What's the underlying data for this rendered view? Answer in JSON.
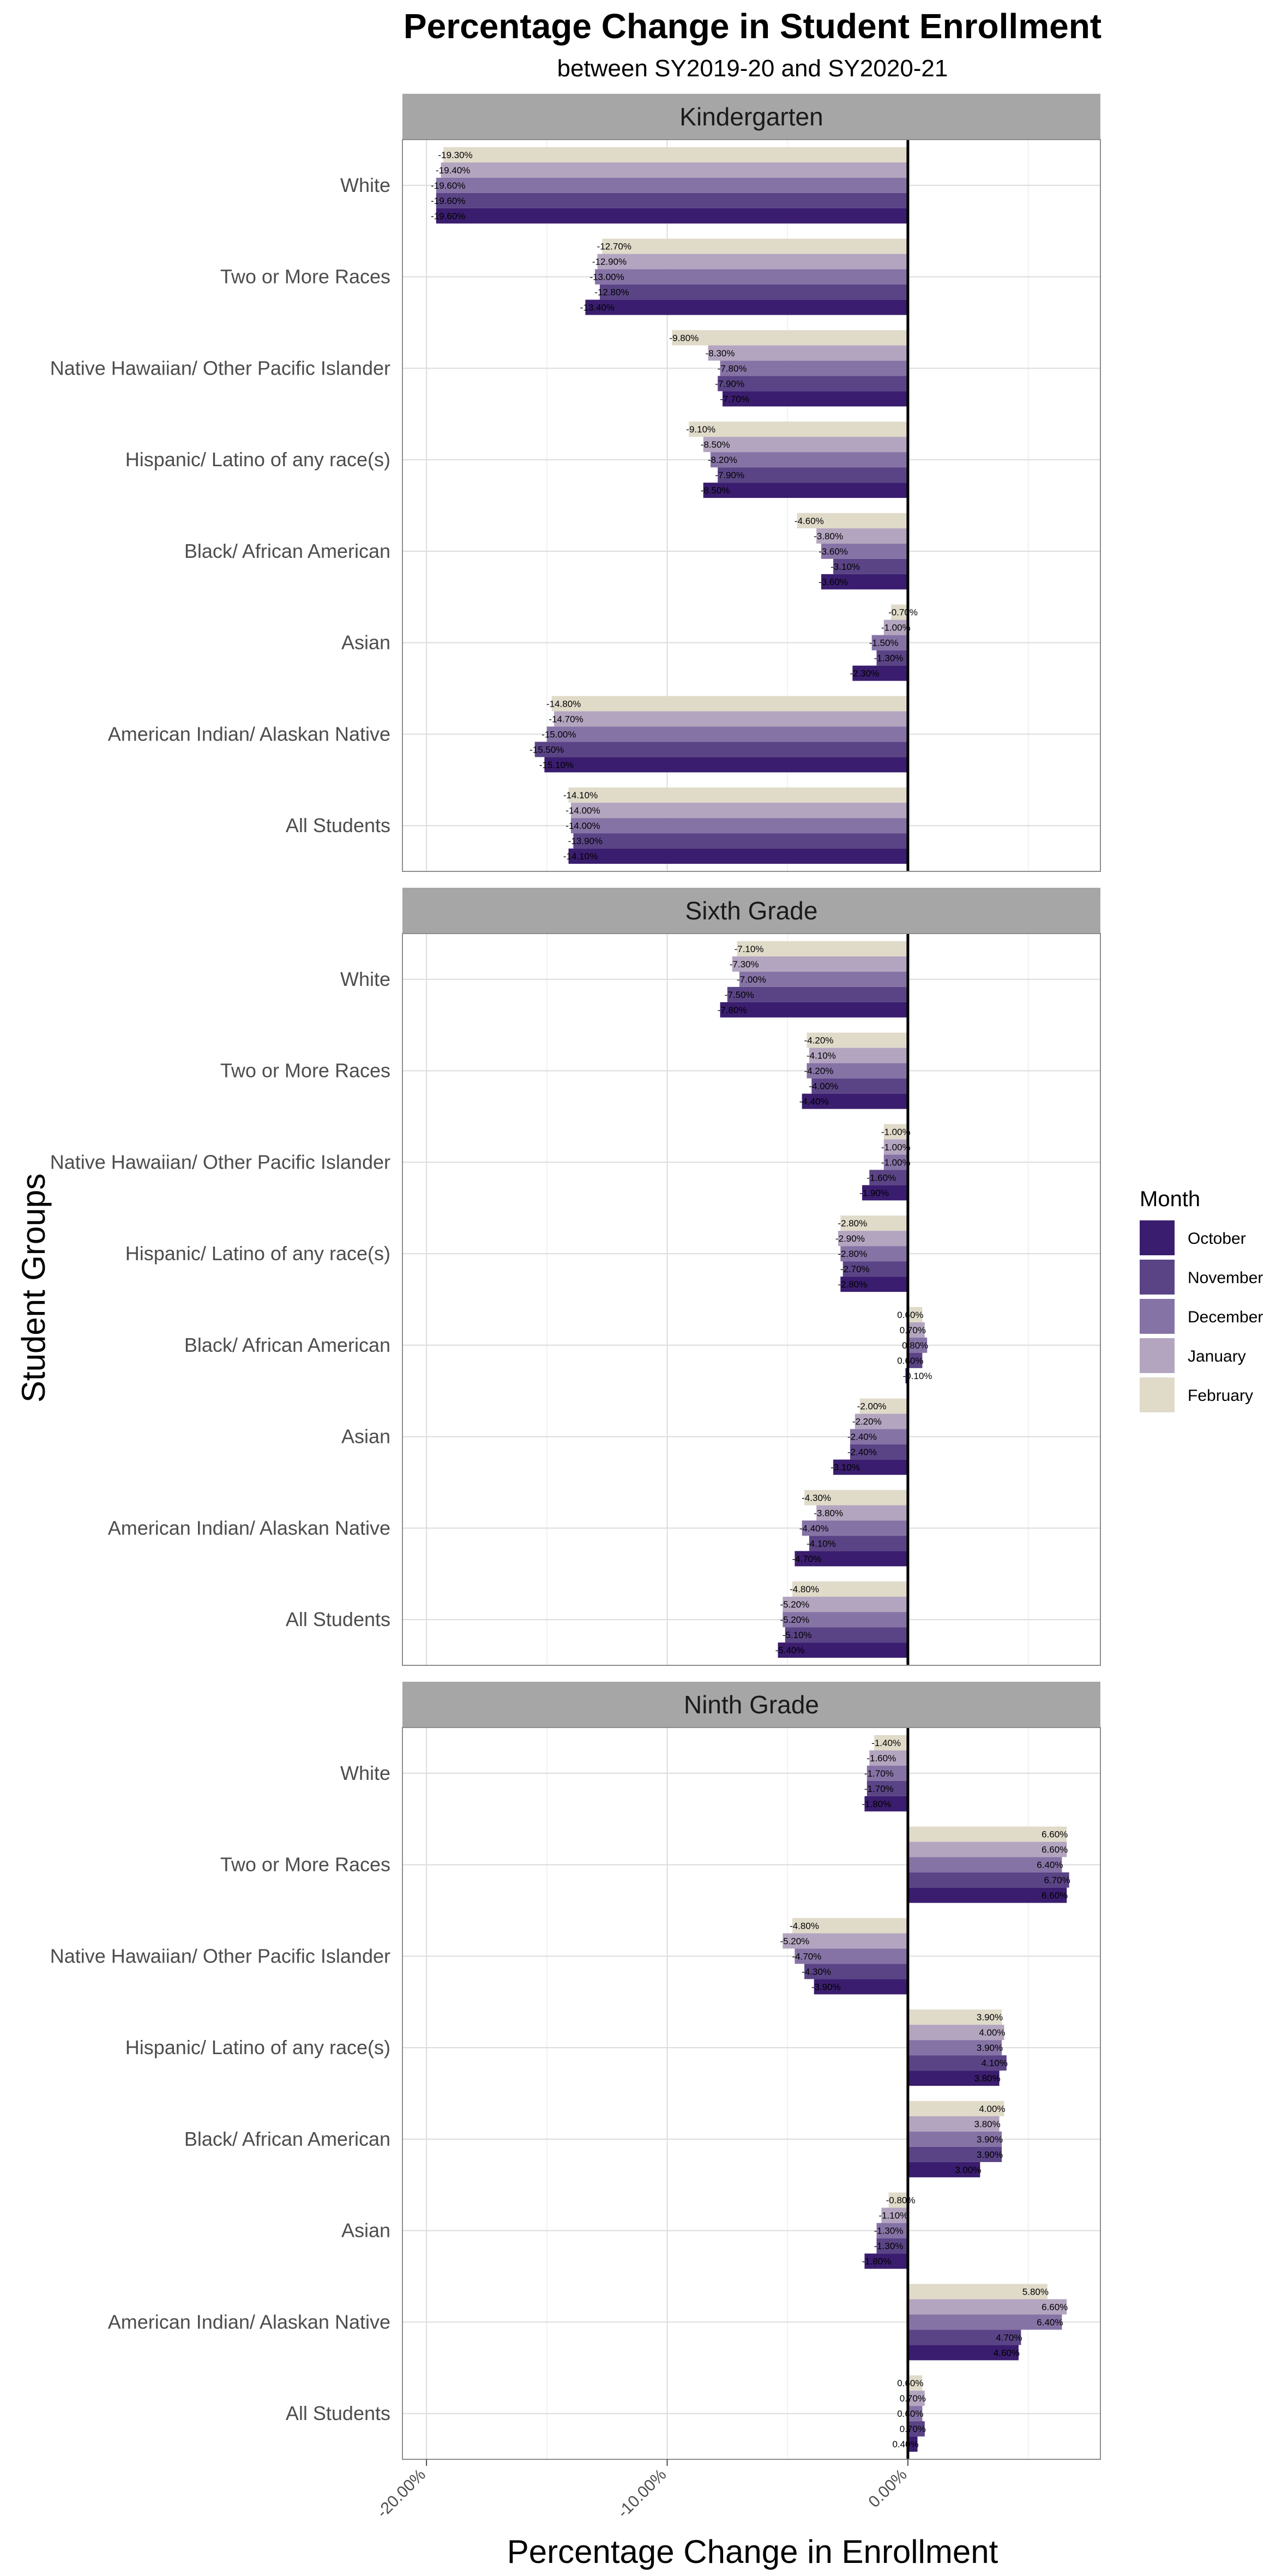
{
  "chart_data": {
    "type": "bar",
    "orientation": "horizontal",
    "title": "Percentage Change in Student Enrollment",
    "subtitle": "between SY2019-20 and SY2020-21",
    "xlabel": "Percentage Change in Enrollment",
    "ylabel": "Student Groups",
    "xlim": [
      -0.21,
      0.08
    ],
    "x_ticks": [
      -0.2,
      -0.1,
      0.0
    ],
    "x_tick_labels": [
      "-20.00%",
      "-10.00%",
      "0.00%"
    ],
    "grid": true,
    "legend": {
      "title": "Month",
      "position": "right",
      "entries": [
        "October",
        "November",
        "December",
        "January",
        "February"
      ],
      "colors": [
        "#3a1d6e",
        "#5a4486",
        "#8673a6",
        "#b3a5bf",
        "#e0dac9"
      ]
    },
    "categories": [
      "White",
      "Two or More Races",
      "Native Hawaiian/ Other Pacific Islander",
      "Hispanic/ Latino of any race(s)",
      "Black/ African American",
      "Asian",
      "American Indian/ Alaskan Native",
      "All Students"
    ],
    "panels": [
      {
        "name": "Kindergarten",
        "values": [
          [
            -0.196,
            -0.196,
            -0.196,
            -0.194,
            -0.193
          ],
          [
            -0.134,
            -0.128,
            -0.13,
            -0.129,
            -0.127
          ],
          [
            -0.077,
            -0.079,
            -0.078,
            -0.083,
            -0.098
          ],
          [
            -0.085,
            -0.079,
            -0.082,
            -0.085,
            -0.091
          ],
          [
            -0.036,
            -0.031,
            -0.036,
            -0.038,
            -0.046
          ],
          [
            -0.023,
            -0.013,
            -0.015,
            -0.01,
            -0.007
          ],
          [
            -0.151,
            -0.155,
            -0.15,
            -0.147,
            -0.148
          ],
          [
            -0.141,
            -0.139,
            -0.14,
            -0.14,
            -0.141
          ]
        ],
        "labels": [
          [
            "-19.60%",
            "-19.60%",
            "-19.60%",
            "-19.40%",
            "-19.30%"
          ],
          [
            "-13.40%",
            "-12.80%",
            "-13.00%",
            "-12.90%",
            "-12.70%"
          ],
          [
            "-7.70%",
            "-7.90%",
            "-7.80%",
            "-8.30%",
            "-9.80%"
          ],
          [
            "-8.50%",
            "-7.90%",
            "-8.20%",
            "-8.50%",
            "-9.10%"
          ],
          [
            "-3.60%",
            "-3.10%",
            "-3.60%",
            "-3.80%",
            "-4.60%"
          ],
          [
            "-2.30%",
            "-1.30%",
            "-1.50%",
            "-1.00%",
            "-0.70%"
          ],
          [
            "-15.10%",
            "-15.50%",
            "-15.00%",
            "-14.70%",
            "-14.80%"
          ],
          [
            "-14.10%",
            "-13.90%",
            "-14.00%",
            "-14.00%",
            "-14.10%"
          ]
        ]
      },
      {
        "name": "Sixth Grade",
        "values": [
          [
            -0.078,
            -0.075,
            -0.07,
            -0.073,
            -0.071
          ],
          [
            -0.044,
            -0.04,
            -0.042,
            -0.041,
            -0.042
          ],
          [
            -0.019,
            -0.016,
            -0.01,
            -0.01,
            -0.01
          ],
          [
            -0.028,
            -0.027,
            -0.028,
            -0.029,
            -0.028
          ],
          [
            -0.001,
            0.006,
            0.008,
            0.007,
            0.006
          ],
          [
            -0.031,
            -0.024,
            -0.024,
            -0.022,
            -0.02
          ],
          [
            -0.047,
            -0.041,
            -0.044,
            -0.038,
            -0.043
          ],
          [
            -0.054,
            -0.051,
            -0.052,
            -0.052,
            -0.048
          ]
        ],
        "labels": [
          [
            "-7.80%",
            "-7.50%",
            "-7.00%",
            "-7.30%",
            "-7.10%"
          ],
          [
            "-4.40%",
            "-4.00%",
            "-4.20%",
            "-4.10%",
            "-4.20%"
          ],
          [
            "-1.90%",
            "-1.60%",
            "-1.00%",
            "-1.00%",
            "-1.00%"
          ],
          [
            "-2.80%",
            "-2.70%",
            "-2.80%",
            "-2.90%",
            "-2.80%"
          ],
          [
            "-0.10%",
            "0.60%",
            "0.80%",
            "0.70%",
            "0.60%"
          ],
          [
            "-3.10%",
            "-2.40%",
            "-2.40%",
            "-2.20%",
            "-2.00%"
          ],
          [
            "-4.70%",
            "-4.10%",
            "-4.40%",
            "-3.80%",
            "-4.30%"
          ],
          [
            "-5.40%",
            "-5.10%",
            "-5.20%",
            "-5.20%",
            "-4.80%"
          ]
        ]
      },
      {
        "name": "Ninth Grade",
        "values": [
          [
            -0.018,
            -0.017,
            -0.017,
            -0.016,
            -0.014
          ],
          [
            0.066,
            0.067,
            0.064,
            0.066,
            0.066
          ],
          [
            -0.039,
            -0.043,
            -0.047,
            -0.052,
            -0.048
          ],
          [
            0.038,
            0.041,
            0.039,
            0.04,
            0.039
          ],
          [
            0.03,
            0.039,
            0.039,
            0.038,
            0.04
          ],
          [
            -0.018,
            -0.013,
            -0.013,
            -0.011,
            -0.008
          ],
          [
            0.046,
            0.047,
            0.064,
            0.066,
            0.058
          ],
          [
            0.004,
            0.007,
            0.006,
            0.007,
            0.006
          ]
        ],
        "labels": [
          [
            "-1.80%",
            "-1.70%",
            "-1.70%",
            "-1.60%",
            "-1.40%"
          ],
          [
            "6.60%",
            "6.70%",
            "6.40%",
            "6.60%",
            "6.60%"
          ],
          [
            "-3.90%",
            "-4.30%",
            "-4.70%",
            "-5.20%",
            "-4.80%"
          ],
          [
            "3.80%",
            "4.10%",
            "3.90%",
            "4.00%",
            "3.90%"
          ],
          [
            "3.00%",
            "3.90%",
            "3.90%",
            "3.80%",
            "4.00%"
          ],
          [
            "-1.80%",
            "-1.30%",
            "-1.30%",
            "-1.10%",
            "-0.80%"
          ],
          [
            "4.60%",
            "4.70%",
            "6.40%",
            "6.60%",
            "5.80%"
          ],
          [
            "0.40%",
            "0.70%",
            "0.60%",
            "0.70%",
            "0.60%"
          ]
        ]
      }
    ]
  }
}
